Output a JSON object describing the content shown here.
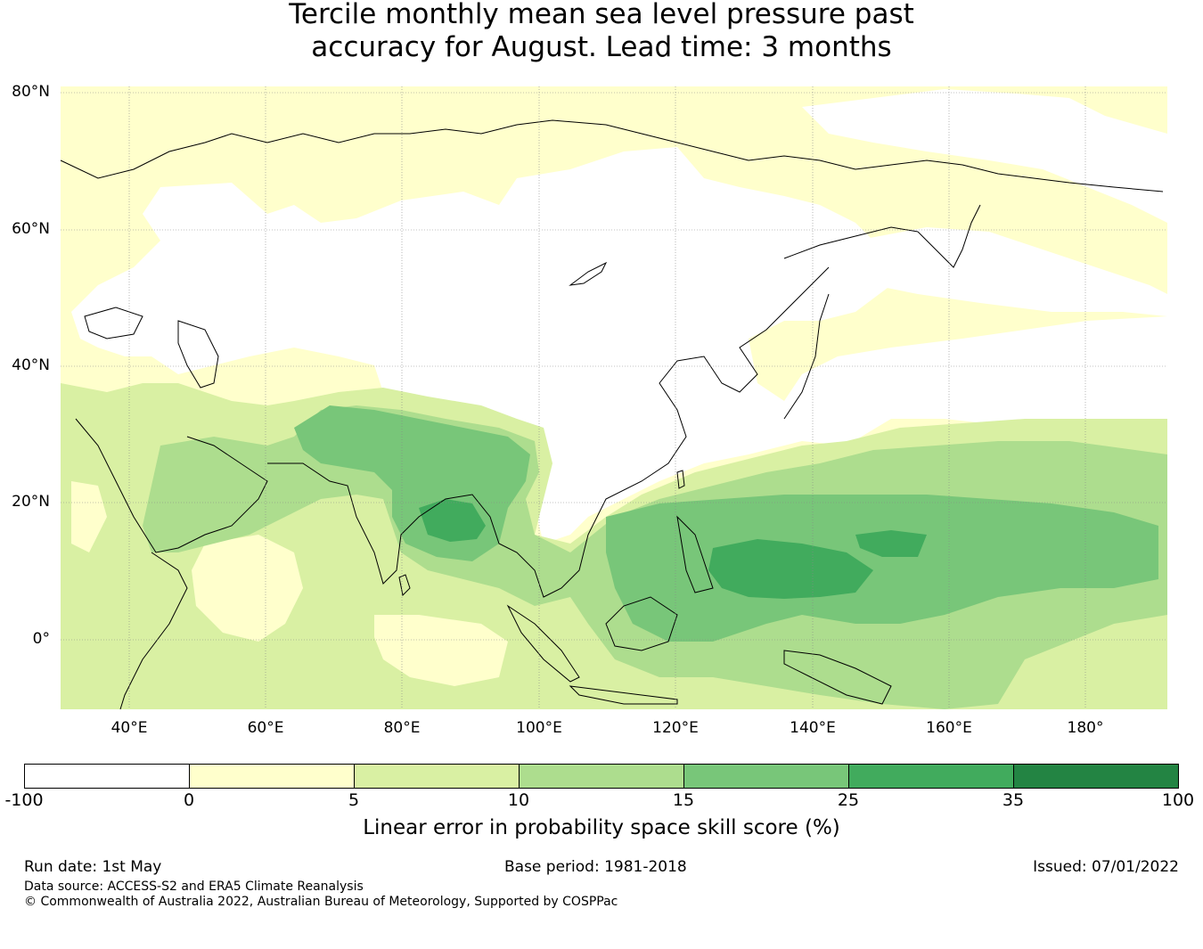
{
  "title_line1": "Tercile monthly mean sea level pressure past",
  "title_line2": "accuracy for August. Lead time: 3 months",
  "map": {
    "lon_range": [
      30,
      192
    ],
    "lat_range": [
      -10,
      81
    ],
    "lat_labels": [
      "80°N",
      "60°N",
      "40°N",
      "20°N",
      "0°"
    ],
    "lat_values": [
      80,
      60,
      40,
      20,
      0
    ],
    "lon_labels": [
      "40°E",
      "60°E",
      "80°E",
      "100°E",
      "120°E",
      "140°E",
      "160°E",
      "180°"
    ],
    "lon_values": [
      40,
      60,
      80,
      100,
      120,
      140,
      160,
      180
    ]
  },
  "colorbar": {
    "ticks": [
      "-100",
      "0",
      "5",
      "10",
      "15",
      "25",
      "35",
      "100"
    ],
    "colors": [
      "#ffffff",
      "#ffffcc",
      "#d9f0a3",
      "#addd8e",
      "#78c679",
      "#41ab5d",
      "#238443"
    ],
    "label": "Linear error in probability space skill score (%)"
  },
  "footer": {
    "run_date": "Run date: 1st May",
    "base_period": "Base period: 1981-2018",
    "issued": "Issued: 07/01/2022",
    "data_source": "Data source: ACCESS-S2 and ERA5 Climate Reanalysis",
    "copyright": "© Commonwealth of Australia 2022, Australian Bureau of Meteorology, Supported by COSPPac"
  }
}
